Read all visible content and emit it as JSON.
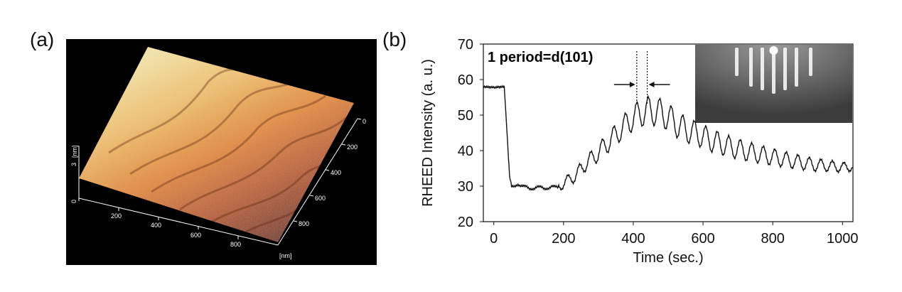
{
  "panels": {
    "a_label": "(a)",
    "b_label": "(b)"
  },
  "afm": {
    "z_unit": "[nm]",
    "z_ticks": [
      "0",
      "3"
    ],
    "x_ticks": [
      "200",
      "400",
      "600",
      "800"
    ],
    "x_unit": "[nm]",
    "y_ticks": [
      "0",
      "200",
      "400",
      "600",
      "800"
    ],
    "colors": {
      "high": "#f7e3a3",
      "mid": "#e6902c",
      "low": "#7a3212",
      "background": "#000000"
    }
  },
  "chart_data": {
    "type": "line",
    "title": "",
    "xlabel": "Time (sec.)",
    "ylabel": "RHEED Intensity (a. u.)",
    "xlim": [
      -30,
      1030
    ],
    "ylim": [
      20,
      70
    ],
    "x_ticks": [
      0,
      200,
      400,
      600,
      800,
      1000
    ],
    "y_ticks": [
      20,
      30,
      40,
      50,
      60,
      70
    ],
    "grid": false,
    "annotation": "1 period=d(101)",
    "marker_lines_x": [
      410,
      440
    ],
    "series": [
      {
        "color": "#111111",
        "x": [
          -30,
          0,
          30,
          38,
          45,
          52,
          60,
          70,
          80,
          100,
          130,
          160,
          190,
          210,
          235,
          260,
          290,
          320,
          350,
          380,
          410,
          440,
          470,
          500,
          530,
          560,
          590,
          620,
          650,
          680,
          710,
          740,
          770,
          800,
          830,
          860,
          890,
          920,
          950,
          980,
          1000,
          1030
        ],
        "y": [
          58,
          57.8,
          58,
          45,
          33,
          29.5,
          30,
          30.8,
          30,
          29.4,
          29.6,
          29.5,
          30,
          31.5,
          33,
          36,
          38.5,
          41.5,
          44.5,
          47.5,
          50,
          51.2,
          51,
          49.5,
          47,
          45.5,
          44.5,
          43,
          42,
          41,
          40.2,
          39.5,
          38.8,
          38.2,
          37.6,
          37,
          36.5,
          36,
          35.8,
          35.5,
          35.3,
          35.5
        ]
      }
    ],
    "inset": {
      "description_colors": {
        "background": "#4a4a4a",
        "streak": "#ffffff"
      }
    }
  }
}
